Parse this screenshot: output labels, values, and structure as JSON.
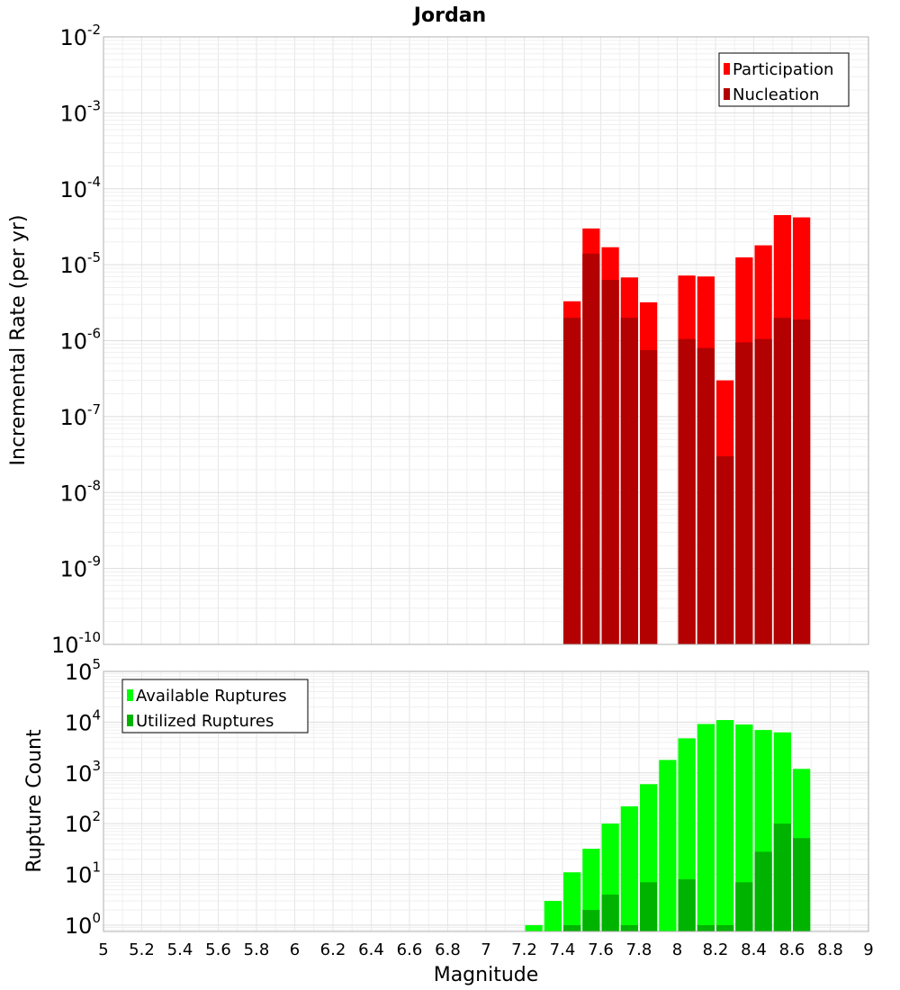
{
  "chart_data": [
    {
      "type": "bar",
      "title": "Jordan",
      "xlabel": "Magnitude",
      "ylabel": "Incremental Rate (per yr)",
      "yscale": "log",
      "xlim": [
        5,
        9
      ],
      "ylim": [
        1e-10,
        0.01
      ],
      "y_tick_exponents": [
        -2,
        -3,
        -4,
        -5,
        -6,
        -7,
        -8,
        -9,
        -10
      ],
      "legend_position": "top-right",
      "bar_width": 0.1,
      "categories": [
        7.45,
        7.55,
        7.65,
        7.75,
        7.85,
        8.05,
        8.15,
        8.25,
        8.35,
        8.45,
        8.55,
        8.65
      ],
      "series": [
        {
          "name": "Participation",
          "color": "#ff0000",
          "values": [
            3.3e-06,
            3e-05,
            1.7e-05,
            6.8e-06,
            3.2e-06,
            7.2e-06,
            7e-06,
            3e-07,
            1.25e-05,
            1.8e-05,
            4.5e-05,
            4.2e-05
          ]
        },
        {
          "name": "Nucleation",
          "color": "#b30000",
          "values": [
            2e-06,
            1.4e-05,
            6.3e-06,
            2e-06,
            7.5e-07,
            1.05e-06,
            8e-07,
            3e-08,
            9.5e-07,
            1.05e-06,
            2e-06,
            1.9e-06
          ]
        }
      ]
    },
    {
      "type": "bar",
      "title": "",
      "xlabel": "Magnitude",
      "ylabel": "Rupture Count",
      "yscale": "log",
      "xlim": [
        5,
        9
      ],
      "ylim": [
        0.75,
        100000.0
      ],
      "y_tick_exponents": [
        5,
        4,
        3,
        2,
        1,
        0
      ],
      "x_ticks": [
        "5",
        "5.2",
        "5.4",
        "5.6",
        "5.8",
        "6",
        "6.2",
        "6.4",
        "6.6",
        "6.8",
        "7",
        "7.2",
        "7.4",
        "7.6",
        "7.8",
        "8",
        "8.2",
        "8.4",
        "8.6",
        "8.8",
        "9"
      ],
      "legend_position": "top-left",
      "bar_width": 0.1,
      "categories": [
        7.25,
        7.35,
        7.45,
        7.55,
        7.65,
        7.75,
        7.85,
        7.95,
        8.05,
        8.15,
        8.25,
        8.35,
        8.45,
        8.55,
        8.65
      ],
      "series": [
        {
          "name": "Available Ruptures",
          "color": "#00ff00",
          "values": [
            1,
            3,
            11,
            32,
            100,
            220,
            600,
            1800,
            4800,
            9200,
            11000,
            9000,
            7000,
            6300,
            1200
          ]
        },
        {
          "name": "Utilized Ruptures",
          "color": "#00b300",
          "values": [
            0,
            0,
            1,
            2,
            4,
            1,
            7,
            0,
            8,
            1,
            1,
            7,
            28,
            100,
            52
          ]
        }
      ]
    }
  ]
}
